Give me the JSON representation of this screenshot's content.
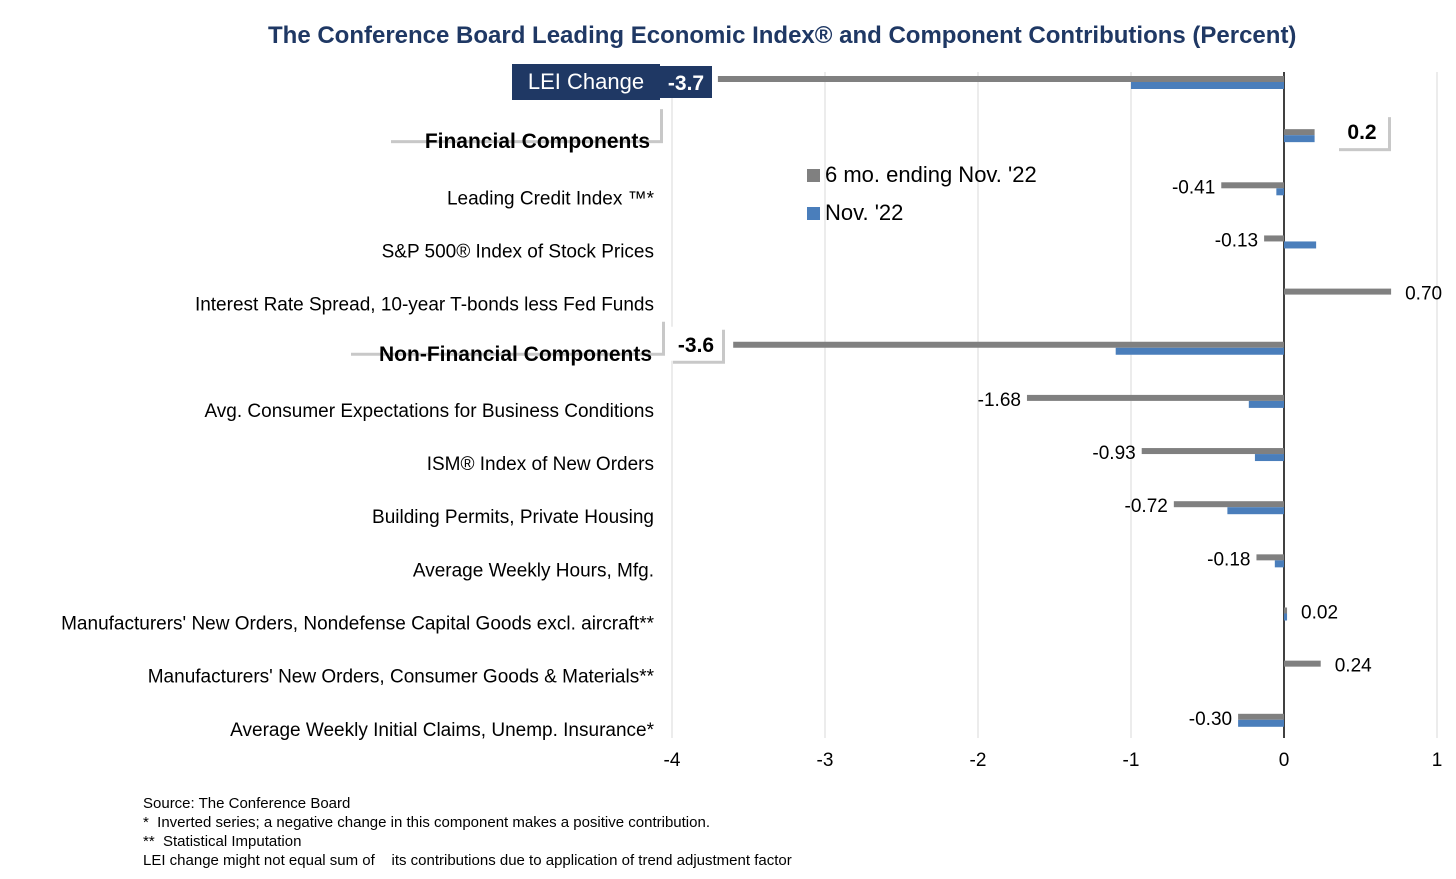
{
  "chart_data": {
    "type": "bar",
    "orientation": "horizontal",
    "title": "The Conference Board Leading Economic Index® and Component Contributions (Percent)",
    "xlim": [
      -4,
      1
    ],
    "x_ticks": [
      "-4",
      "-3",
      "-2",
      "-1",
      "0",
      "1"
    ],
    "grid": "vertical",
    "legend_position": "top-center",
    "series": [
      {
        "name": "6 mo. ending Nov. '22",
        "color": "#808080"
      },
      {
        "name": "Nov. '22",
        "color": "#4a7ebb"
      }
    ],
    "categories": [
      {
        "label": "LEI Change",
        "kind": "total",
        "six_month": -3.7,
        "monthly": -1.0,
        "value_label": "-3.7"
      },
      {
        "label": "Financial Components",
        "kind": "group",
        "six_month": 0.2,
        "monthly": 0.2,
        "value_label": "0.2"
      },
      {
        "label": "Leading Credit Index ™*",
        "kind": "item",
        "six_month": -0.41,
        "monthly": -0.05,
        "value_label": "-0.41"
      },
      {
        "label": "S&P 500® Index of Stock Prices",
        "kind": "item",
        "six_month": -0.13,
        "monthly": 0.21,
        "value_label": "-0.13"
      },
      {
        "label": "Interest Rate Spread, 10-year T-bonds less Fed Funds",
        "kind": "item",
        "six_month": 0.7,
        "monthly": 0.0,
        "value_label": "0.70"
      },
      {
        "label": "Non-Financial Components",
        "kind": "group",
        "six_month": -3.6,
        "monthly": -1.1,
        "value_label": "-3.6"
      },
      {
        "label": "Avg. Consumer Expectations for Business Conditions",
        "kind": "item",
        "six_month": -1.68,
        "monthly": -0.23,
        "value_label": "-1.68"
      },
      {
        "label": "ISM® Index of New Orders",
        "kind": "item",
        "six_month": -0.93,
        "monthly": -0.19,
        "value_label": "-0.93"
      },
      {
        "label": "Building Permits, Private Housing",
        "kind": "item",
        "six_month": -0.72,
        "monthly": -0.37,
        "value_label": "-0.72"
      },
      {
        "label": "Average Weekly Hours, Mfg.",
        "kind": "item",
        "six_month": -0.18,
        "monthly": -0.06,
        "value_label": "-0.18"
      },
      {
        "label": "Manufacturers' New Orders, Nondefense Capital Goods excl. aircraft**",
        "kind": "item",
        "six_month": 0.02,
        "monthly": 0.02,
        "value_label": "0.02"
      },
      {
        "label": "Manufacturers' New Orders, Consumer Goods & Materials**",
        "kind": "item",
        "six_month": 0.24,
        "monthly": 0.0,
        "value_label": "0.24"
      },
      {
        "label": "Average Weekly Initial Claims, Unemp. Insurance*",
        "kind": "item",
        "six_month": -0.3,
        "monthly": -0.3,
        "value_label": "-0.30"
      }
    ]
  },
  "notes": [
    "Source: The Conference Board",
    "*  Inverted series; a negative change in this component makes a positive contribution.",
    "**  Statistical Imputation",
    "LEI change might not equal sum of    its contributions due to application of trend adjustment factor"
  ]
}
